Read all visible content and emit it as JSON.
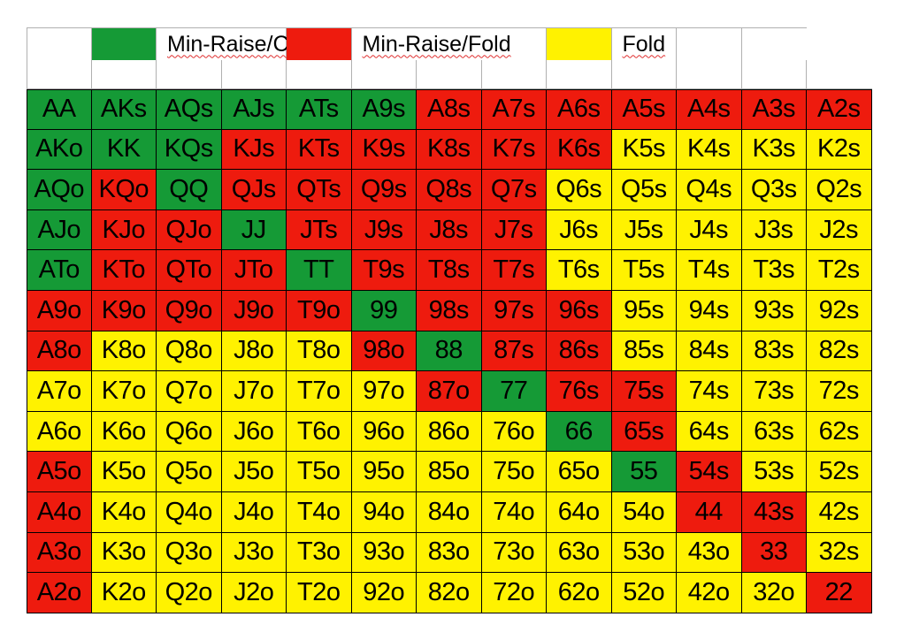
{
  "legend": {
    "items": [
      {
        "color": "#159a36",
        "label": "Min-Raise/Call"
      },
      {
        "color": "#ee1b0e",
        "label": "Min-Raise/Fold"
      },
      {
        "color": "#fff200",
        "label": "Fold"
      }
    ]
  },
  "palette": {
    "G": "#159a36",
    "R": "#ee1b0e",
    "Y": "#fff200"
  },
  "grid": {
    "rows": [
      {
        "hands": [
          "AA",
          "AKs",
          "AQs",
          "AJs",
          "ATs",
          "A9s",
          "A8s",
          "A7s",
          "A6s",
          "A5s",
          "A4s",
          "A3s",
          "A2s"
        ],
        "colors": "GGGGGGRRRRRRR"
      },
      {
        "hands": [
          "AKo",
          "KK",
          "KQs",
          "KJs",
          "KTs",
          "K9s",
          "K8s",
          "K7s",
          "K6s",
          "K5s",
          "K4s",
          "K3s",
          "K2s"
        ],
        "colors": "GGGRRRRRRYYYY"
      },
      {
        "hands": [
          "AQo",
          "KQo",
          "QQ",
          "QJs",
          "QTs",
          "Q9s",
          "Q8s",
          "Q7s",
          "Q6s",
          "Q5s",
          "Q4s",
          "Q3s",
          "Q2s"
        ],
        "colors": "GRGRRRRRYYYYY"
      },
      {
        "hands": [
          "AJo",
          "KJo",
          "QJo",
          "JJ",
          "JTs",
          "J9s",
          "J8s",
          "J7s",
          "J6s",
          "J5s",
          "J4s",
          "J3s",
          "J2s"
        ],
        "colors": "GRRGRRRRYYYYY"
      },
      {
        "hands": [
          "ATo",
          "KTo",
          "QTo",
          "JTo",
          "TT",
          "T9s",
          "T8s",
          "T7s",
          "T6s",
          "T5s",
          "T4s",
          "T3s",
          "T2s"
        ],
        "colors": "GRRRGRRRYYYYY"
      },
      {
        "hands": [
          "A9o",
          "K9o",
          "Q9o",
          "J9o",
          "T9o",
          "99",
          "98s",
          "97s",
          "96s",
          "95s",
          "94s",
          "93s",
          "92s"
        ],
        "colors": "RRRRRGRRRYYYY"
      },
      {
        "hands": [
          "A8o",
          "K8o",
          "Q8o",
          "J8o",
          "T8o",
          "98o",
          "88",
          "87s",
          "86s",
          "85s",
          "84s",
          "83s",
          "82s"
        ],
        "colors": "RYYYYRGRRYYYY"
      },
      {
        "hands": [
          "A7o",
          "K7o",
          "Q7o",
          "J7o",
          "T7o",
          "97o",
          "87o",
          "77",
          "76s",
          "75s",
          "74s",
          "73s",
          "72s"
        ],
        "colors": "YYYYYYRGRRYYY"
      },
      {
        "hands": [
          "A6o",
          "K6o",
          "Q6o",
          "J6o",
          "T6o",
          "96o",
          "86o",
          "76o",
          "66",
          "65s",
          "64s",
          "63s",
          "62s"
        ],
        "colors": "YYYYYYYYGRYYY"
      },
      {
        "hands": [
          "A5o",
          "K5o",
          "Q5o",
          "J5o",
          "T5o",
          "95o",
          "85o",
          "75o",
          "65o",
          "55",
          "54s",
          "53s",
          "52s"
        ],
        "colors": "RYYYYYYYYGRYY"
      },
      {
        "hands": [
          "A4o",
          "K4o",
          "Q4o",
          "J4o",
          "T4o",
          "94o",
          "84o",
          "74o",
          "64o",
          "54o",
          "44",
          "43s",
          "42s"
        ],
        "colors": "RYYYYYYYYYRRY"
      },
      {
        "hands": [
          "A3o",
          "K3o",
          "Q3o",
          "J3o",
          "T3o",
          "93o",
          "83o",
          "73o",
          "63o",
          "53o",
          "43o",
          "33",
          "32s"
        ],
        "colors": "RYYYYYYYYYYRY"
      },
      {
        "hands": [
          "A2o",
          "K2o",
          "Q2o",
          "J2o",
          "T2o",
          "92o",
          "82o",
          "72o",
          "62o",
          "52o",
          "42o",
          "32o",
          "22"
        ],
        "colors": "RYYYYYYYYYYYR"
      }
    ]
  }
}
